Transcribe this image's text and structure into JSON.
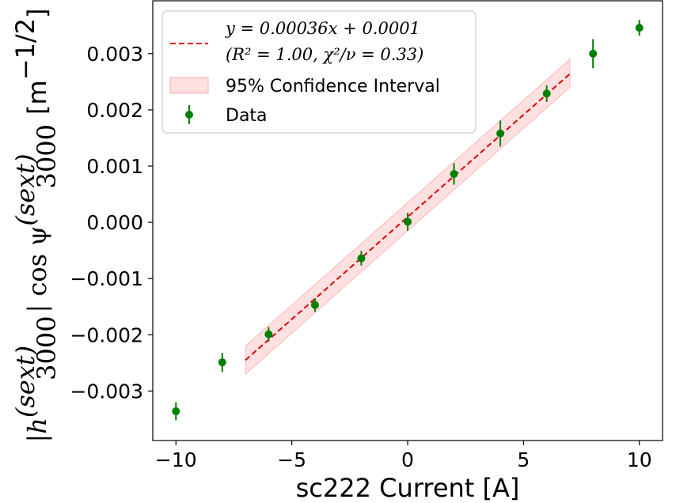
{
  "chart_data": {
    "type": "scatter",
    "xlabel": "sc222 Current [A]",
    "ylabel": {
      "math_h": "|h",
      "math_h_sup": "(sext)",
      "math_h_sub": "3000",
      "math_mid": "| cos ψ",
      "math_psi_sup": "(sext)",
      "math_psi_sub": "3000",
      "unit": "[m",
      "unit_sup": "−1/2",
      "unit_close": "]"
    },
    "xlim": [
      -11,
      11
    ],
    "ylim": [
      -0.00388,
      0.00394
    ],
    "x_ticks": [
      -10,
      -5,
      0,
      5,
      10
    ],
    "x_tick_labels": [
      "−10",
      "−5",
      "0",
      "5",
      "10"
    ],
    "y_ticks": [
      -0.003,
      -0.002,
      -0.001,
      0.0,
      0.001,
      0.002,
      0.003
    ],
    "y_tick_labels": [
      "−0.003",
      "−0.002",
      "−0.001",
      "0.000",
      "0.001",
      "0.002",
      "0.003"
    ],
    "grid": false,
    "legend_position": "top-left",
    "series": [
      {
        "name": "Data",
        "kind": "errorbar",
        "color": "#008000",
        "x": [
          -10,
          -8,
          -6,
          -4,
          -2,
          0,
          2,
          4,
          6,
          8,
          10
        ],
        "y": [
          -0.00336,
          -0.00249,
          -0.00199,
          -0.00147,
          -0.00064,
          1e-05,
          0.00086,
          0.00158,
          0.00229,
          0.003,
          0.00346
        ],
        "yerr": [
          0.00016,
          0.00017,
          0.00013,
          0.00012,
          0.00013,
          0.00016,
          0.00019,
          0.00023,
          0.00015,
          0.00026,
          0.00014
        ]
      }
    ],
    "fit": {
      "label_line1": "y = 0.00036x + 0.0001",
      "label_line2": "(R² = 1.00, χ²/ν = 0.33)",
      "slope": 0.00036,
      "intercept": 0.0001,
      "x_range": [
        -7,
        7
      ],
      "line_y": [
        -0.00245,
        0.00264
      ],
      "color": "#e00000",
      "style": "dashed"
    },
    "confidence_band": {
      "label": "95% Confidence Interval",
      "color": "#ffcccc",
      "x": [
        -7,
        7
      ],
      "lower": [
        -0.0027,
        0.0024
      ],
      "upper": [
        -0.0022,
        0.0029
      ]
    }
  }
}
